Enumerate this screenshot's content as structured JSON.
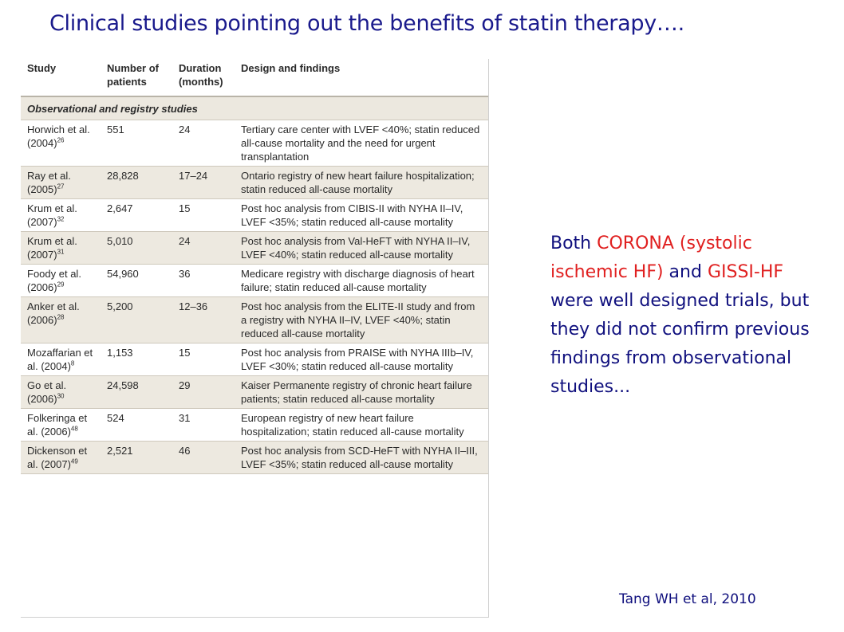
{
  "title": "Clinical studies pointing out the benefits of statin therapy….",
  "table": {
    "headers": [
      "Study",
      "Number of patients",
      "Duration (months)",
      "Design and findings"
    ],
    "section_label": "Observational and registry studies",
    "rows": [
      {
        "study": "Horwich et al. (2004)",
        "ref": "26",
        "patients": "551",
        "duration": "24",
        "design": "Tertiary care center with LVEF <40%; statin reduced all-cause mortality and the need for urgent transplantation"
      },
      {
        "study": "Ray et al. (2005)",
        "ref": "27",
        "patients": "28,828",
        "duration": "17–24",
        "design": "Ontario registry of new heart failure hospitalization; statin reduced all-cause mortality"
      },
      {
        "study": "Krum et al. (2007)",
        "ref": "32",
        "patients": "2,647",
        "duration": "15",
        "design": "Post hoc analysis from CIBIS-II with NYHA II–IV, LVEF <35%; statin reduced all-cause mortality"
      },
      {
        "study": "Krum et al. (2007)",
        "ref": "31",
        "patients": "5,010",
        "duration": "24",
        "design": "Post hoc analysis from Val-HeFT with NYHA II–IV, LVEF <40%; statin reduced all-cause mortality"
      },
      {
        "study": "Foody et al. (2006)",
        "ref": "29",
        "patients": "54,960",
        "duration": "36",
        "design": "Medicare registry with discharge diagnosis of heart failure; statin reduced all-cause mortality"
      },
      {
        "study": "Anker et al. (2006)",
        "ref": "28",
        "patients": "5,200",
        "duration": "12–36",
        "design": "Post hoc analysis from the ELITE-II study and from a registry with NYHA II–IV, LVEF <40%; statin reduced all-cause mortality"
      },
      {
        "study": "Mozaffarian et al. (2004)",
        "ref": "8",
        "patients": "1,153",
        "duration": "15",
        "design": "Post hoc analysis from PRAISE with NYHA IIIb–IV, LVEF <30%; statin reduced all-cause mortality"
      },
      {
        "study": "Go et al. (2006)",
        "ref": "30",
        "patients": "24,598",
        "duration": "29",
        "design": "Kaiser Permanente registry of chronic heart failure patients; statin reduced all-cause mortality"
      },
      {
        "study": "Folkeringa et al. (2006)",
        "ref": "48",
        "patients": "524",
        "duration": "31",
        "design": "European registry of new heart failure hospitalization; statin reduced all-cause mortality"
      },
      {
        "study": "Dickenson et al. (2007)",
        "ref": "49",
        "patients": "2,521",
        "duration": "46",
        "design": "Post hoc analysis from SCD-HeFT with NYHA II–III, LVEF <35%; statin reduced all-cause mortality"
      }
    ]
  },
  "note": {
    "parts": [
      {
        "text": "Both ",
        "hl": false
      },
      {
        "text": "CORONA (systolic ischemic HF)",
        "hl": true
      },
      {
        "text": " and ",
        "hl": false
      },
      {
        "text": "GISSI-HF",
        "hl": true
      },
      {
        "text": " were well designed trials, but they did not confirm previous findings from observational studies...",
        "hl": false
      }
    ]
  },
  "source": "Tang WH et al, 2010",
  "colors": {
    "title": "#1a1a8c",
    "highlight": "#e02020",
    "row_shade": "#ede9e0"
  }
}
